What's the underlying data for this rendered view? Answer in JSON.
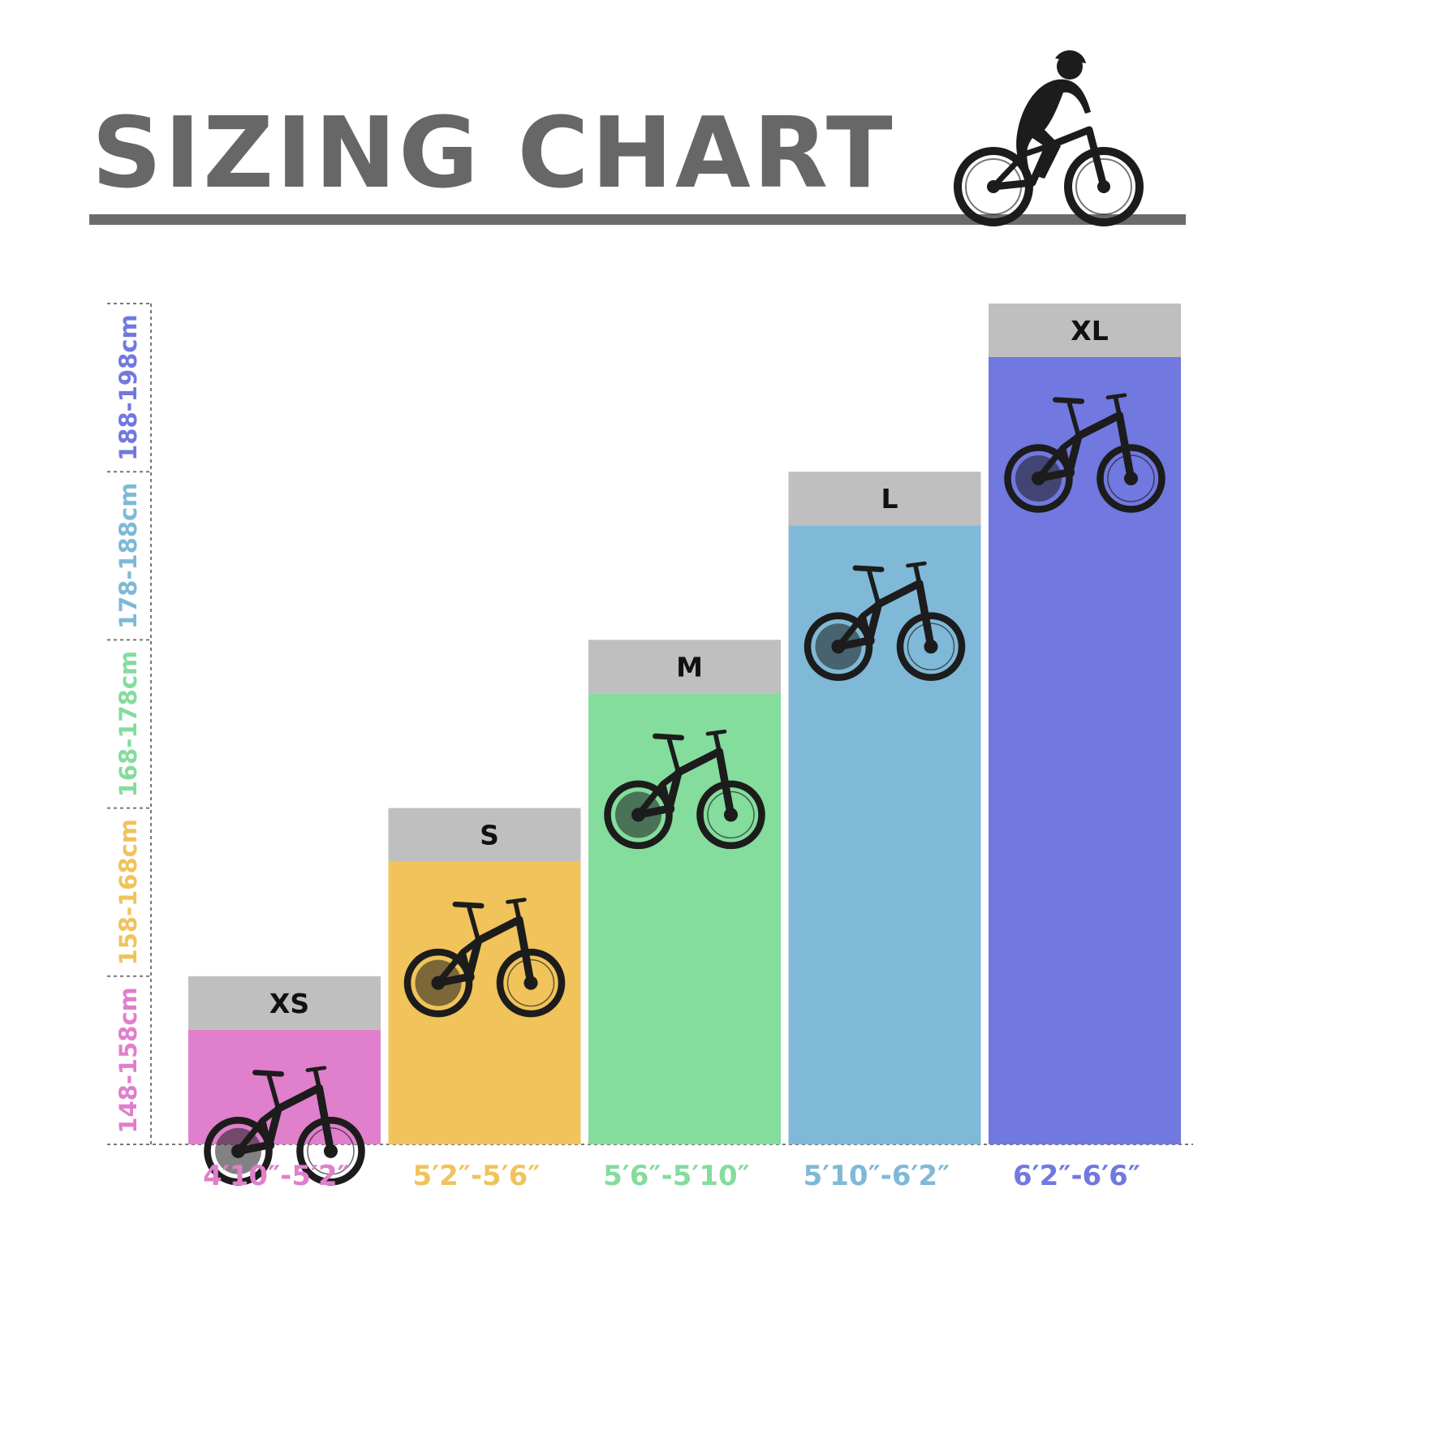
{
  "title": "SIZING CHART",
  "colors": {
    "title": "#676767",
    "rule": "#6b6b6b",
    "header_band": "#bfbfbf",
    "axis": "#777777",
    "bike": "#1c1c1c"
  },
  "icons": [
    "rider-silhouette-icon",
    "bike-silhouette-icon"
  ],
  "chart_data": {
    "type": "bar",
    "title": "SIZING CHART",
    "orientation": "vertical",
    "y_axis": {
      "categories": [
        "148-158cm",
        "158-168cm",
        "168-178cm",
        "178-188cm",
        "188-198cm"
      ],
      "tick_colors": [
        "#e07fcb",
        "#f0c35b",
        "#84dc9d",
        "#7fb9d7",
        "#7178e0"
      ]
    },
    "categories": [
      "4′10″-5′2″",
      "5′2″-5′6″",
      "5′6″-5′10″",
      "5′10″-6′2″",
      "6′2″-6′6″"
    ],
    "category_colors": [
      "#e07fcb",
      "#f0c35b",
      "#84dc9d",
      "#7fb9d7",
      "#7178e0"
    ],
    "sizes": [
      "XS",
      "S",
      "M",
      "L",
      "XL"
    ],
    "values": [
      1,
      2,
      3,
      4,
      5
    ],
    "bar_colors": [
      "#e07fcb",
      "#f0c35b",
      "#84dc9d",
      "#7fb9d7",
      "#7178e0"
    ],
    "grid": false,
    "legend": "none"
  }
}
